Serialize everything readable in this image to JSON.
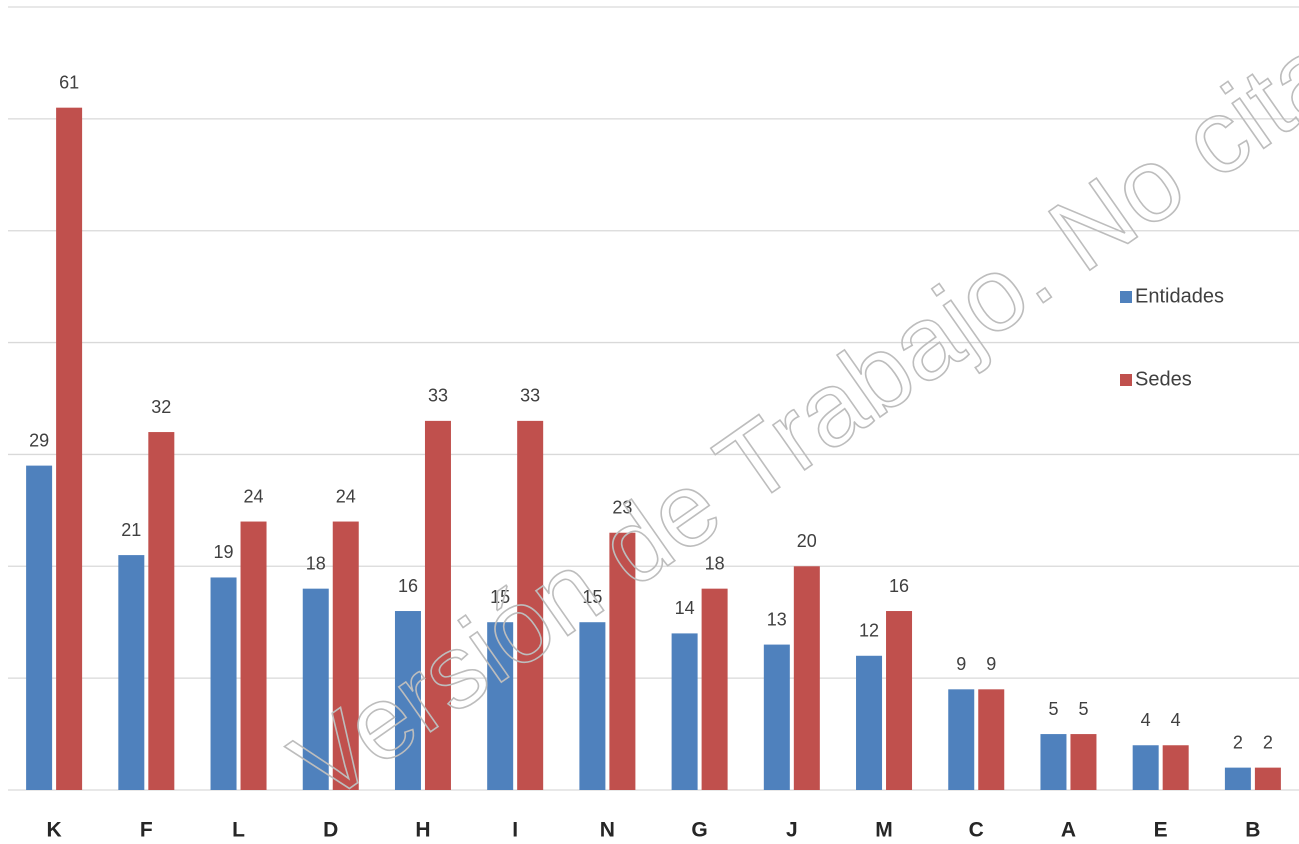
{
  "chart_data": {
    "type": "bar",
    "categories": [
      "K",
      "F",
      "L",
      "D",
      "H",
      "I",
      "N",
      "G",
      "J",
      "M",
      "C",
      "A",
      "E",
      "B"
    ],
    "series": [
      {
        "name": "Entidades",
        "color": "#4f81bd",
        "values": [
          29,
          21,
          19,
          18,
          16,
          15,
          15,
          14,
          13,
          12,
          9,
          5,
          4,
          2
        ]
      },
      {
        "name": "Sedes",
        "color": "#c0504d",
        "values": [
          61,
          32,
          24,
          24,
          33,
          33,
          23,
          18,
          20,
          16,
          9,
          5,
          4,
          2
        ]
      }
    ],
    "ylim": [
      0,
      70
    ],
    "yticks": [
      0,
      10,
      20,
      30,
      40,
      50,
      60,
      70
    ],
    "grid": true,
    "legend": "right",
    "watermark": "Versión de Trabajo. No citar"
  }
}
